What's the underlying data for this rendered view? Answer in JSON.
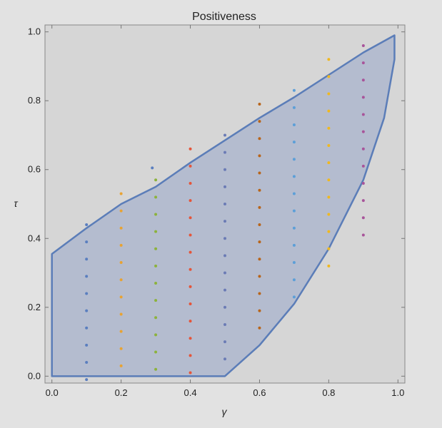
{
  "chart_data": {
    "type": "scatter",
    "title": "Positiveness",
    "xlabel": "γ",
    "ylabel": "τ",
    "xlim": [
      -0.02,
      1.02
    ],
    "ylim": [
      -0.02,
      1.02
    ],
    "xticks": [
      "0.0",
      "0.2",
      "0.4",
      "0.6",
      "0.8",
      "1.0"
    ],
    "yticks": [
      "0.0",
      "0.2",
      "0.4",
      "0.6",
      "0.8",
      "1.0"
    ],
    "grid": false,
    "background": "#e2e2e2",
    "plot_background": "#d6d6d6",
    "region": {
      "fill": "#b4bccf",
      "stroke": "#5b7db8",
      "boundary": [
        [
          0.0,
          0.0
        ],
        [
          0.5,
          0.0
        ],
        [
          0.6,
          0.09
        ],
        [
          0.7,
          0.21
        ],
        [
          0.8,
          0.37
        ],
        [
          0.9,
          0.57
        ],
        [
          0.96,
          0.75
        ],
        [
          0.99,
          0.92
        ],
        [
          0.99,
          0.99
        ],
        [
          0.9,
          0.94
        ],
        [
          0.8,
          0.875
        ],
        [
          0.7,
          0.81
        ],
        [
          0.6,
          0.75
        ],
        [
          0.5,
          0.685
        ],
        [
          0.4,
          0.62
        ],
        [
          0.3,
          0.55
        ],
        [
          0.2,
          0.5
        ],
        [
          0.1,
          0.43
        ],
        [
          0.0,
          0.355
        ]
      ]
    },
    "series": [
      {
        "color": "#5a7ebf",
        "points": [
          [
            0.1,
            -0.01
          ],
          [
            0.1,
            0.04
          ],
          [
            0.1,
            0.09
          ],
          [
            0.1,
            0.14
          ],
          [
            0.1,
            0.19
          ],
          [
            0.1,
            0.24
          ],
          [
            0.1,
            0.29
          ],
          [
            0.1,
            0.34
          ],
          [
            0.1,
            0.39
          ],
          [
            0.1,
            0.44
          ]
        ]
      },
      {
        "color": "#e8a333",
        "points": [
          [
            0.2,
            0.03
          ],
          [
            0.2,
            0.08
          ],
          [
            0.2,
            0.13
          ],
          [
            0.2,
            0.18
          ],
          [
            0.2,
            0.23
          ],
          [
            0.2,
            0.28
          ],
          [
            0.2,
            0.33
          ],
          [
            0.2,
            0.38
          ],
          [
            0.2,
            0.43
          ],
          [
            0.2,
            0.48
          ],
          [
            0.2,
            0.53
          ]
        ]
      },
      {
        "color": "#8cb23c",
        "points": [
          [
            0.3,
            0.02
          ],
          [
            0.3,
            0.07
          ],
          [
            0.3,
            0.12
          ],
          [
            0.3,
            0.17
          ],
          [
            0.3,
            0.22
          ],
          [
            0.3,
            0.27
          ],
          [
            0.3,
            0.32
          ],
          [
            0.3,
            0.37
          ],
          [
            0.3,
            0.42
          ],
          [
            0.3,
            0.47
          ],
          [
            0.3,
            0.52
          ],
          [
            0.3,
            0.57
          ]
        ]
      },
      {
        "color": "#e5553a",
        "points": [
          [
            0.4,
            0.01
          ],
          [
            0.4,
            0.06
          ],
          [
            0.4,
            0.11
          ],
          [
            0.4,
            0.16
          ],
          [
            0.4,
            0.21
          ],
          [
            0.4,
            0.26
          ],
          [
            0.4,
            0.31
          ],
          [
            0.4,
            0.36
          ],
          [
            0.4,
            0.41
          ],
          [
            0.4,
            0.46
          ],
          [
            0.4,
            0.51
          ],
          [
            0.4,
            0.56
          ],
          [
            0.4,
            0.61
          ],
          [
            0.4,
            0.66
          ]
        ]
      },
      {
        "color": "#6b7bb5",
        "points": [
          [
            0.5,
            0.05
          ],
          [
            0.5,
            0.1
          ],
          [
            0.5,
            0.15
          ],
          [
            0.5,
            0.2
          ],
          [
            0.5,
            0.25
          ],
          [
            0.5,
            0.3
          ],
          [
            0.5,
            0.35
          ],
          [
            0.5,
            0.4
          ],
          [
            0.5,
            0.45
          ],
          [
            0.5,
            0.5
          ],
          [
            0.5,
            0.55
          ],
          [
            0.5,
            0.6
          ],
          [
            0.5,
            0.65
          ],
          [
            0.5,
            0.7
          ]
        ]
      },
      {
        "color": "#b8651b",
        "points": [
          [
            0.6,
            0.14
          ],
          [
            0.6,
            0.19
          ],
          [
            0.6,
            0.24
          ],
          [
            0.6,
            0.29
          ],
          [
            0.6,
            0.34
          ],
          [
            0.6,
            0.39
          ],
          [
            0.6,
            0.44
          ],
          [
            0.6,
            0.49
          ],
          [
            0.6,
            0.54
          ],
          [
            0.6,
            0.59
          ],
          [
            0.6,
            0.64
          ],
          [
            0.6,
            0.69
          ],
          [
            0.6,
            0.74
          ],
          [
            0.6,
            0.79
          ]
        ]
      },
      {
        "color": "#5c9fd8",
        "points": [
          [
            0.7,
            0.23
          ],
          [
            0.7,
            0.28
          ],
          [
            0.7,
            0.33
          ],
          [
            0.7,
            0.38
          ],
          [
            0.7,
            0.43
          ],
          [
            0.7,
            0.48
          ],
          [
            0.7,
            0.53
          ],
          [
            0.7,
            0.58
          ],
          [
            0.7,
            0.63
          ],
          [
            0.7,
            0.68
          ],
          [
            0.7,
            0.73
          ],
          [
            0.7,
            0.78
          ],
          [
            0.7,
            0.83
          ]
        ]
      },
      {
        "color": "#f0b81e",
        "points": [
          [
            0.8,
            0.32
          ],
          [
            0.8,
            0.37
          ],
          [
            0.8,
            0.42
          ],
          [
            0.8,
            0.47
          ],
          [
            0.8,
            0.52
          ],
          [
            0.8,
            0.57
          ],
          [
            0.8,
            0.62
          ],
          [
            0.8,
            0.67
          ],
          [
            0.8,
            0.72
          ],
          [
            0.8,
            0.77
          ],
          [
            0.8,
            0.82
          ],
          [
            0.8,
            0.87
          ],
          [
            0.8,
            0.92
          ]
        ]
      },
      {
        "color": "#a8549a",
        "points": [
          [
            0.9,
            0.41
          ],
          [
            0.9,
            0.46
          ],
          [
            0.9,
            0.51
          ],
          [
            0.9,
            0.56
          ],
          [
            0.9,
            0.61
          ],
          [
            0.9,
            0.66
          ],
          [
            0.9,
            0.71
          ],
          [
            0.9,
            0.76
          ],
          [
            0.9,
            0.81
          ],
          [
            0.9,
            0.86
          ],
          [
            0.9,
            0.91
          ],
          [
            0.9,
            0.96
          ]
        ]
      }
    ],
    "extra_marks": [
      {
        "color": "#5a7ebf",
        "points": [
          [
            0.29,
            0.605
          ]
        ]
      }
    ]
  }
}
